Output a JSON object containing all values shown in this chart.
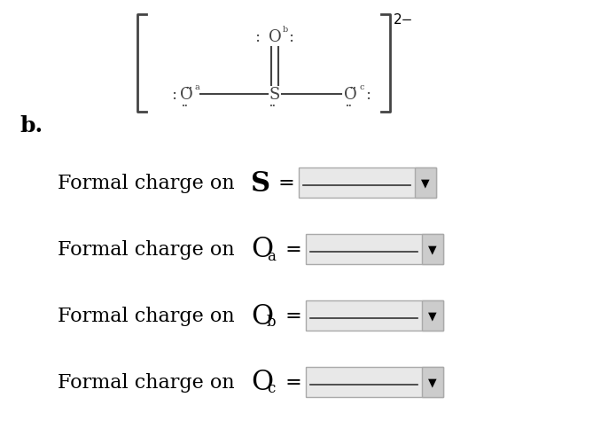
{
  "background_color": "#ffffff",
  "text_color": "#000000",
  "mol_color": "#444444",
  "label_b": "b.",
  "rows": [
    {
      "symbol": "S",
      "subscript": "",
      "bold": true
    },
    {
      "symbol": "O",
      "subscript": "a",
      "bold": false
    },
    {
      "symbol": "O",
      "subscript": "b",
      "bold": false
    },
    {
      "symbol": "O",
      "subscript": "c",
      "bold": false
    }
  ],
  "box_face": "#e8e8e8",
  "box_edge": "#aaaaaa",
  "arrow_face": "#cccccc",
  "line_color": "#333333",
  "dropdown_arrow": "▼"
}
